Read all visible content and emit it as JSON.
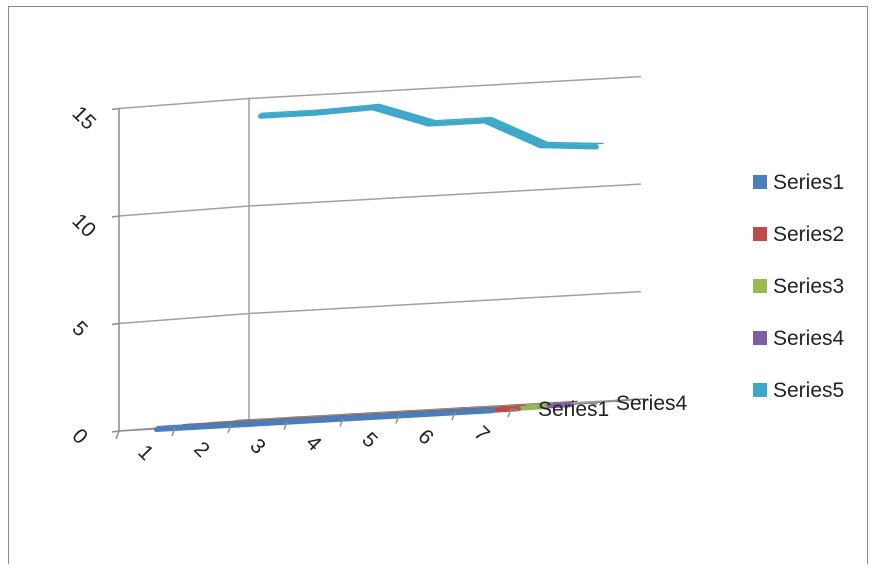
{
  "chart_data": {
    "type": "line",
    "variant": "3d-line",
    "title": "",
    "xlabel": "",
    "ylabel": "",
    "ylim": [
      0,
      15
    ],
    "y_ticks": [
      "0",
      "5",
      "10",
      "15"
    ],
    "categories": [
      "1",
      "2",
      "3",
      "4",
      "5",
      "6",
      "7"
    ],
    "depth_labels": [
      "Series1",
      "Series4"
    ],
    "grid": true,
    "legend": "right",
    "series": [
      {
        "name": "Series1",
        "color": "#4a7ebb",
        "values": [
          0.1,
          0.1,
          0.1,
          0.1,
          0.1,
          0.1,
          0.1
        ]
      },
      {
        "name": "Series2",
        "color": "#be4b48",
        "values": [
          0.1,
          0.1,
          0.1,
          0.1,
          0.1,
          0.1,
          0.1
        ]
      },
      {
        "name": "Series3",
        "color": "#98b954",
        "values": [
          0.1,
          0.1,
          0.1,
          0.1,
          0.1,
          0.1,
          0.1
        ]
      },
      {
        "name": "Series4",
        "color": "#7d5fa0",
        "values": [
          0.1,
          0.1,
          0.1,
          0.1,
          0.1,
          0.1,
          0.1
        ]
      },
      {
        "name": "Series5",
        "color": "#3fa8c8",
        "values": [
          14.3,
          14.3,
          14.4,
          13.5,
          13.5,
          12.2,
          12.0
        ]
      }
    ]
  }
}
